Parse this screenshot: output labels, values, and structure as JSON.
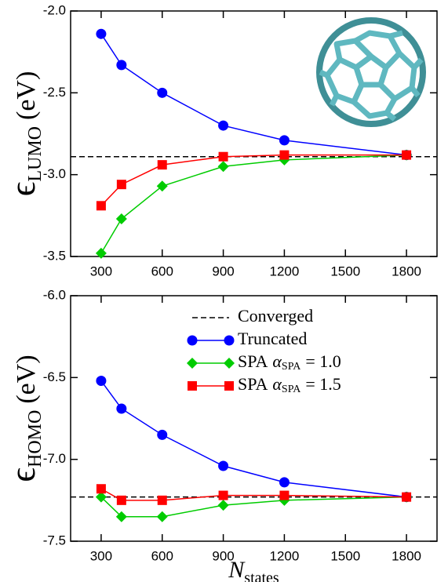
{
  "chart_data": [
    {
      "type": "line",
      "ylabel": {
        "symbol": "ϵ",
        "sub": "LUMO",
        "unit": "(eV)"
      },
      "x": [
        300,
        400,
        600,
        900,
        1200,
        1800
      ],
      "xlim": [
        150,
        1950
      ],
      "xticks": [
        300,
        600,
        900,
        1200,
        1500,
        1800
      ],
      "ylim": [
        -3.5,
        -2.0
      ],
      "yticks": [
        {
          "value": -3.5,
          "label": "-3.5"
        },
        {
          "value": -3.0,
          "label": "-3.0"
        },
        {
          "value": -2.5,
          "label": "-2.5"
        },
        {
          "value": -2.0,
          "label": "-2.0"
        }
      ],
      "reference": {
        "value": -2.89,
        "color": "#000000"
      },
      "series": [
        {
          "color": "#0000ff",
          "marker": "circle",
          "values": [
            -2.14,
            -2.33,
            -2.5,
            -2.7,
            -2.79,
            -2.88
          ]
        },
        {
          "color": "#00cc00",
          "marker": "diamond",
          "values": [
            -3.48,
            -3.27,
            -3.07,
            -2.95,
            -2.91,
            -2.88
          ]
        },
        {
          "color": "#ff0000",
          "marker": "square",
          "values": [
            -3.19,
            -3.06,
            -2.94,
            -2.89,
            -2.88,
            -2.88
          ]
        }
      ]
    },
    {
      "type": "line",
      "ylabel": {
        "symbol": "ϵ",
        "sub": "HOMO",
        "unit": "(eV)"
      },
      "xlabel": {
        "symbol": "N",
        "sub": "states"
      },
      "x": [
        300,
        400,
        600,
        900,
        1200,
        1800
      ],
      "xlim": [
        150,
        1950
      ],
      "xticks": [
        300,
        600,
        900,
        1200,
        1500,
        1800
      ],
      "ylim": [
        -7.5,
        -6.0
      ],
      "yticks": [
        {
          "value": -7.5,
          "label": "-7.5"
        },
        {
          "value": -7.0,
          "label": "-7.0"
        },
        {
          "value": -6.5,
          "label": "-6.5"
        },
        {
          "value": -6.0,
          "label": "-6.0"
        }
      ],
      "reference": {
        "name": "Converged",
        "value": -7.23,
        "color": "#000000"
      },
      "series": [
        {
          "name": "Truncated",
          "color": "#0000ff",
          "marker": "circle",
          "values": [
            -6.52,
            -6.69,
            -6.85,
            -7.04,
            -7.14,
            -7.23
          ]
        },
        {
          "name": "SPA",
          "param": "α",
          "param_sub": "SPA",
          "param_value": "= 1.0",
          "color": "#00cc00",
          "marker": "diamond",
          "values": [
            -7.23,
            -7.35,
            -7.35,
            -7.28,
            -7.25,
            -7.23
          ]
        },
        {
          "name": "SPA",
          "param": "α",
          "param_sub": "SPA",
          "param_value": "= 1.5",
          "color": "#ff0000",
          "marker": "square",
          "values": [
            -7.18,
            -7.25,
            -7.25,
            -7.22,
            -7.22,
            -7.23
          ]
        }
      ]
    }
  ]
}
